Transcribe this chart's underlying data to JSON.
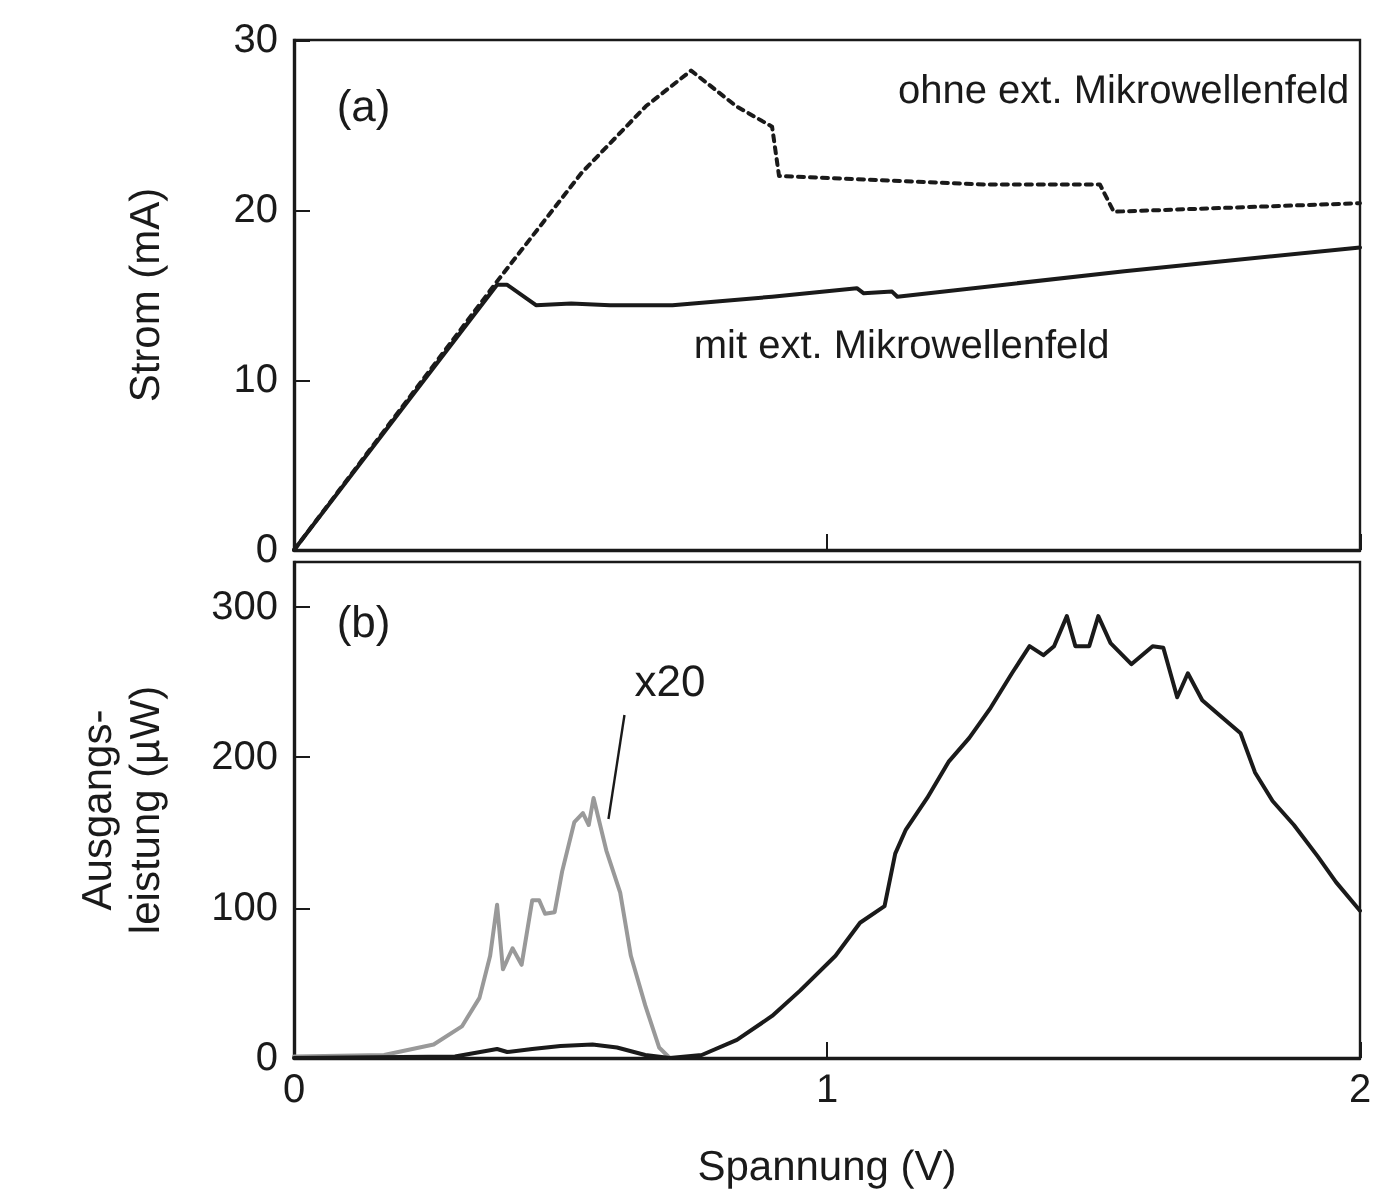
{
  "chart_data": [
    {
      "type": "line",
      "ylabel": "Strom (mA)",
      "xlim": [
        0,
        2
      ],
      "xticks": [
        0,
        1,
        2
      ],
      "ylim": [
        0,
        30
      ],
      "yticks": [
        0,
        10,
        20,
        30
      ],
      "tick_labels": "y",
      "marker": "none",
      "annotations": [
        "(a)"
      ],
      "series": [
        {
          "name": "ohne ext. Mikrowellenfeld",
          "color": "#1a1a1a",
          "line_style": "dotted",
          "x": [
            0,
            0.381,
            0.54,
            0.66,
            0.745,
            0.83,
            0.897,
            0.91,
            1.294,
            1.512,
            1.538,
            2.0
          ],
          "values": [
            0,
            15.8,
            22.2,
            26.1,
            28.2,
            26.1,
            24.9,
            22.0,
            21.5,
            21.5,
            19.9,
            20.4
          ]
        },
        {
          "name": "mit ext. Mikrowellenfeld",
          "color": "#1a1a1a",
          "line_style": "solid",
          "x": [
            0,
            0.381,
            0.4,
            0.454,
            0.52,
            0.593,
            0.71,
            0.897,
            1.056,
            1.069,
            1.122,
            1.132,
            1.558,
            2.0
          ],
          "values": [
            0,
            15.6,
            15.6,
            14.4,
            14.5,
            14.4,
            14.4,
            14.9,
            15.4,
            15.1,
            15.2,
            14.9,
            16.4,
            17.8
          ]
        }
      ]
    },
    {
      "type": "line",
      "xlabel": "Spannung (V)",
      "ylabel": "Ausgangs-\nleistung (µW)",
      "xlim": [
        0,
        2
      ],
      "xticks": [
        0,
        1,
        2
      ],
      "ylim": [
        0,
        330
      ],
      "yticks": [
        0,
        100,
        200,
        300
      ],
      "marker": "none",
      "line_style": "solid",
      "annotations": [
        "(b)",
        {
          "text": "x20",
          "x": 0.59,
          "y": 159
        }
      ],
      "series": [
        {
          "color": "#999999",
          "x": [
            0,
            0.169,
            0.262,
            0.315,
            0.348,
            0.368,
            0.381,
            0.392,
            0.41,
            0.427,
            0.447,
            0.46,
            0.471,
            0.489,
            0.503,
            0.526,
            0.542,
            0.553,
            0.562,
            0.586,
            0.612,
            0.632,
            0.659,
            0.685,
            0.705
          ],
          "values": [
            1,
            2,
            9,
            21,
            40,
            68,
            102,
            59,
            73,
            62,
            105,
            105,
            96,
            97,
            124,
            157,
            163,
            155,
            173,
            138,
            110,
            68,
            35,
            7,
            0
          ]
        },
        {
          "color": "#1a1a1a",
          "x": [
            0,
            0.302,
            0.381,
            0.4,
            0.447,
            0.5,
            0.56,
            0.606,
            0.659,
            0.705,
            0.765,
            0.831,
            0.897,
            0.95,
            1.016,
            1.062,
            1.108,
            1.128,
            1.148,
            1.188,
            1.228,
            1.267,
            1.307,
            1.347,
            1.38,
            1.406,
            1.426,
            1.45,
            1.466,
            1.492,
            1.509,
            1.532,
            1.571,
            1.611,
            1.631,
            1.657,
            1.677,
            1.704,
            1.73,
            1.776,
            1.803,
            1.836,
            1.876,
            1.921,
            1.955,
            2.0
          ],
          "values": [
            0,
            1,
            6,
            4,
            6,
            8,
            9,
            7,
            2,
            0,
            2,
            12,
            28,
            45,
            68,
            90,
            101,
            136,
            152,
            173,
            197,
            213,
            233,
            256,
            274,
            268,
            274,
            294,
            274,
            274,
            294,
            276,
            262,
            274,
            273,
            240,
            256,
            238,
            230,
            216,
            190,
            171,
            155,
            134,
            117,
            98
          ]
        }
      ]
    }
  ]
}
